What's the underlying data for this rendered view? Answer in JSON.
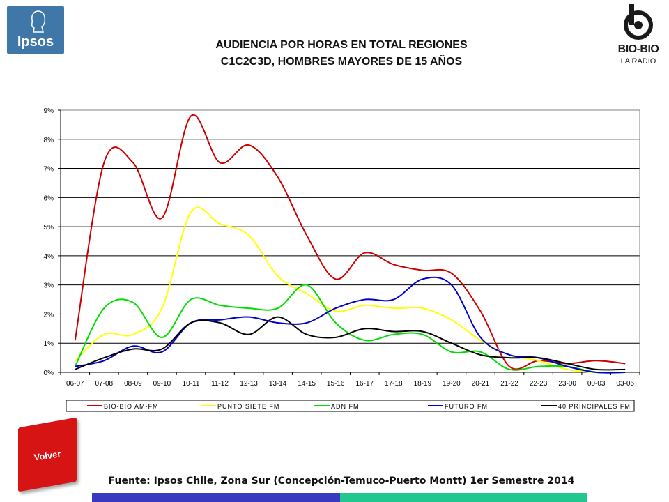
{
  "logos": {
    "ipsos_text": "Ipsos",
    "radio_name": "BIO-BIO",
    "radio_sub": "LA RADIO"
  },
  "title_line1": "AUDIENCIA POR HORAS EN TOTAL REGIONES",
  "title_line2": "C1C2C3D, HOMBRES MAYORES DE 15 AÑOS",
  "volver_label": "Volver",
  "footer": "Fuente: Ipsos Chile, Zona Sur (Concepción-Temuco-Puerto Montt) 1er Semestre 2014",
  "colors": {
    "bar_left": "#3838c0",
    "bar_right": "#20c890",
    "volver": "#d61414"
  },
  "chart_data": {
    "type": "line",
    "title": "",
    "xlabel": "",
    "ylabel": "",
    "ylim": [
      0,
      9
    ],
    "y_unit": "%",
    "yticks": [
      "0%",
      "1%",
      "2%",
      "3%",
      "4%",
      "5%",
      "6%",
      "7%",
      "8%",
      "9%"
    ],
    "grid": true,
    "legend_position": "bottom",
    "categories": [
      "06-07",
      "07-08",
      "08-09",
      "09-10",
      "10-11",
      "11-12",
      "12-13",
      "13-14",
      "14-15",
      "15-16",
      "16-17",
      "17-18",
      "18-19",
      "19-20",
      "20-21",
      "21-22",
      "22-23",
      "23-00",
      "00-03",
      "03-06"
    ],
    "series": [
      {
        "name": "BIO-BIO AM-FM",
        "color": "#cc0000",
        "values": [
          1.1,
          7.2,
          7.2,
          5.3,
          8.8,
          7.2,
          7.8,
          6.7,
          4.7,
          3.2,
          4.1,
          3.7,
          3.5,
          3.4,
          2.1,
          0.2,
          0.4,
          0.3,
          0.4,
          0.3
        ]
      },
      {
        "name": "PUNTO SIETE FM",
        "color": "#ffff00",
        "values": [
          0.4,
          1.3,
          1.3,
          2.2,
          5.5,
          5.1,
          4.7,
          3.3,
          2.7,
          2.1,
          2.3,
          2.2,
          2.2,
          1.8,
          1.1,
          0.6,
          0.4,
          0.1,
          0.0,
          0.0
        ]
      },
      {
        "name": "ADN FM",
        "color": "#00dd00",
        "values": [
          0.2,
          2.2,
          2.4,
          1.2,
          2.5,
          2.3,
          2.2,
          2.2,
          3.0,
          1.7,
          1.1,
          1.3,
          1.3,
          0.7,
          0.7,
          0.1,
          0.2,
          0.2,
          0.0,
          0.0
        ]
      },
      {
        "name": "FUTURO FM",
        "color": "#0000cc",
        "values": [
          0.2,
          0.4,
          0.9,
          0.7,
          1.7,
          1.8,
          1.9,
          1.7,
          1.7,
          2.2,
          2.5,
          2.5,
          3.2,
          3.0,
          1.2,
          0.6,
          0.5,
          0.2,
          0.0,
          0.0
        ]
      },
      {
        "name": "40 PRINCIPALES FM",
        "color": "#000000",
        "values": [
          0.1,
          0.5,
          0.8,
          0.8,
          1.7,
          1.7,
          1.3,
          1.9,
          1.3,
          1.2,
          1.5,
          1.4,
          1.4,
          1.0,
          0.6,
          0.5,
          0.5,
          0.3,
          0.1,
          0.1
        ]
      }
    ]
  }
}
